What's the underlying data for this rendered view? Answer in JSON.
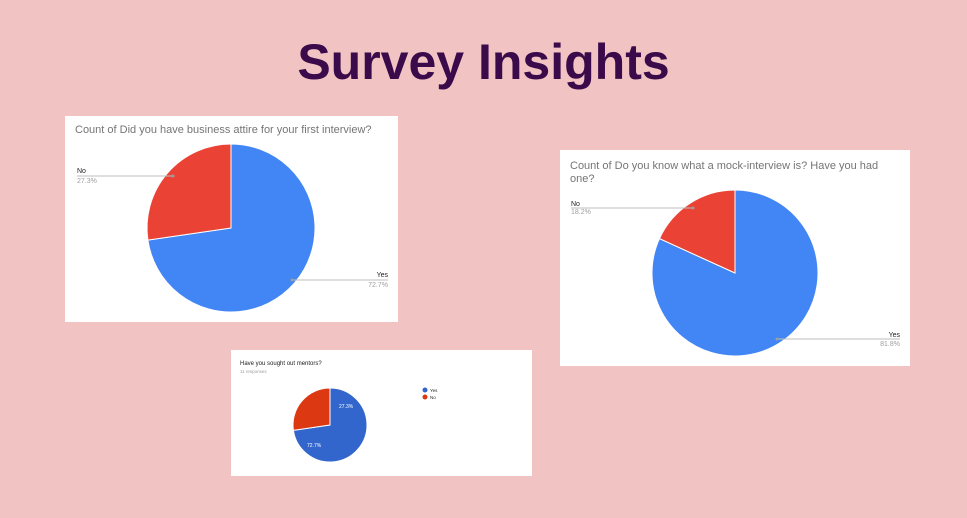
{
  "slide": {
    "title": "Survey Insights"
  },
  "chart_data": [
    {
      "type": "pie",
      "title": "Count of Did you have business attire for your first interview?",
      "series": [
        {
          "name": "",
          "labels": [
            "Yes",
            "No"
          ],
          "values": [
            72.7,
            27.3
          ]
        }
      ],
      "data_labels": [
        "72.7%",
        "27.3%"
      ],
      "colors": [
        "#4285f4",
        "#ea4335"
      ]
    },
    {
      "type": "pie",
      "title": "Count of Do you know what a mock-interview is? Have you had one?",
      "title_lines": [
        "Count of Do you know what a mock-interview is? Have you had",
        "one?"
      ],
      "series": [
        {
          "name": "",
          "labels": [
            "Yes",
            "No"
          ],
          "values": [
            81.8,
            18.2
          ]
        }
      ],
      "data_labels": [
        "81.8%",
        "18.2%"
      ],
      "colors": [
        "#4285f4",
        "#ea4335"
      ]
    },
    {
      "type": "pie",
      "title": "Have you sought out mentors?",
      "subtitle": "11 responses",
      "series": [
        {
          "name": "",
          "labels": [
            "Yes",
            "No"
          ],
          "values": [
            72.7,
            27.3
          ]
        }
      ],
      "data_labels": [
        "72.7%",
        "27.3%"
      ],
      "legend": {
        "entries": [
          "Yes",
          "No"
        ],
        "position": "right"
      },
      "colors": [
        "#3366cc",
        "#dc3912"
      ]
    }
  ]
}
